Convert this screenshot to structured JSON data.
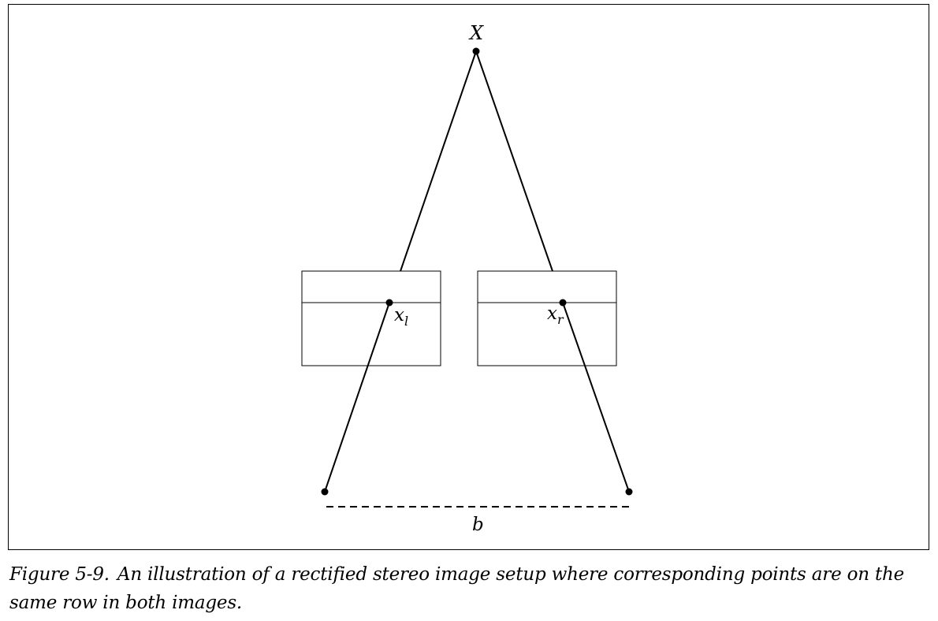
{
  "diagram": {
    "labels": {
      "world_point": "X",
      "left_image_point_base": "x",
      "left_image_point_sub": "l",
      "right_image_point_base": "x",
      "right_image_point_sub": "r",
      "baseline": "b"
    }
  },
  "caption": {
    "figure_number": "Figure 5-9.",
    "text": "An illustration of a rectified stereo image setup where corresponding points are on the same row in both images."
  }
}
